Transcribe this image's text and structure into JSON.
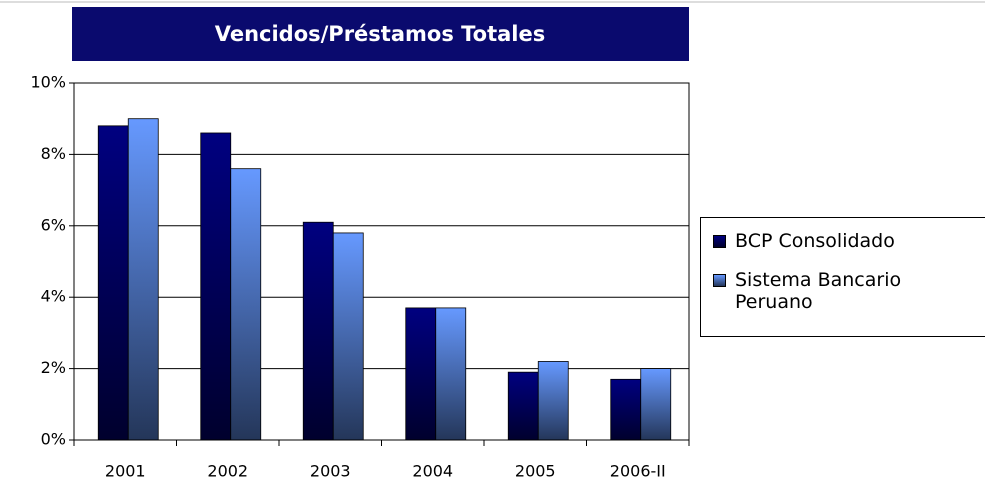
{
  "chart_data": {
    "type": "bar",
    "title": "Vencidos/Préstamos Totales",
    "categories": [
      "2001",
      "2002",
      "2003",
      "2004",
      "2005",
      "2006-II"
    ],
    "series": [
      {
        "name": "BCP Consolidado",
        "color": "#000080",
        "values": [
          8.8,
          8.6,
          6.1,
          3.7,
          1.9,
          1.7
        ]
      },
      {
        "name": "Sistema Bancario Peruano",
        "color": "#6699ff",
        "values": [
          9.0,
          7.6,
          5.8,
          3.7,
          2.2,
          2.0
        ]
      }
    ],
    "ylim": [
      0,
      10
    ],
    "yticks": [
      {
        "value": 0,
        "label": "0%"
      },
      {
        "value": 2,
        "label": "2%"
      },
      {
        "value": 4,
        "label": "4%"
      },
      {
        "value": 6,
        "label": "6%"
      },
      {
        "value": 8,
        "label": "8%"
      },
      {
        "value": 10,
        "label": "10%"
      }
    ],
    "grid": true
  }
}
